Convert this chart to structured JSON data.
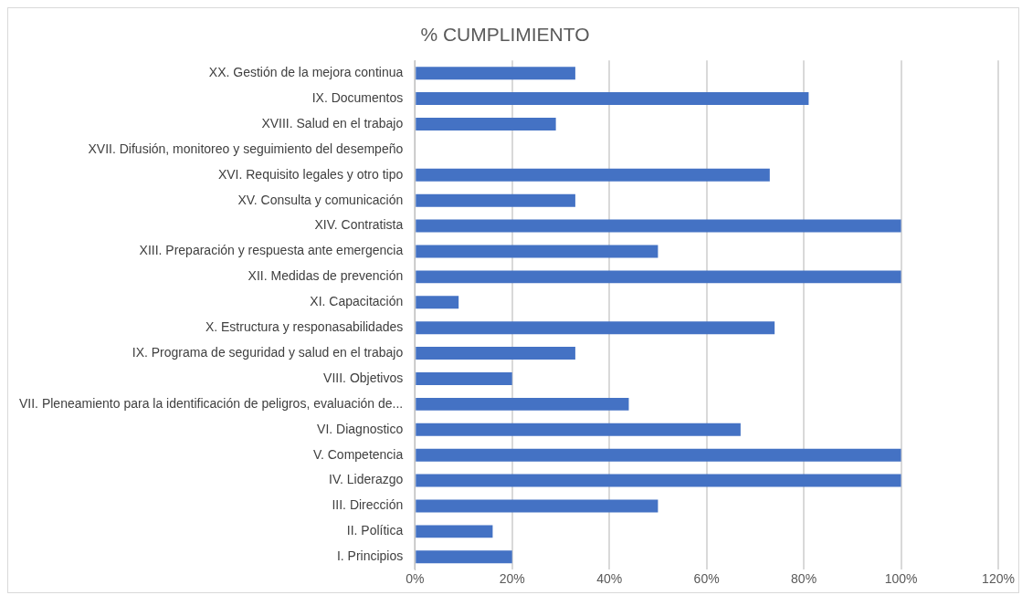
{
  "chart_data": {
    "type": "bar",
    "orientation": "horizontal",
    "title": "% CUMPLIMIENTO",
    "categories": [
      "XX. Gestión de la mejora continua",
      "IX. Documentos",
      "XVIII. Salud en el trabajo",
      "XVII. Difusión, monitoreo y seguimiento del desempeño",
      "XVI. Requisito legales y otro tipo",
      "XV. Consulta y comunicación",
      "XIV. Contratista",
      "XIII. Preparación y respuesta ante emergencia",
      "XII. Medidas de prevención",
      "XI. Capacitación",
      "X. Estructura y responasabilidades",
      "IX. Programa de seguridad y salud en el trabajo",
      "VIII. Objetivos",
      "VII. Pleneamiento para la identificación de peligros, evaluación de...",
      "VI. Diagnostico",
      "V. Competencia",
      "IV. Liderazgo",
      "III. Dirección",
      "II. Política",
      "I. Principios"
    ],
    "values": [
      33,
      81,
      29,
      0,
      73,
      33,
      100,
      50,
      100,
      9,
      74,
      33,
      20,
      44,
      67,
      100,
      100,
      50,
      16,
      20
    ],
    "color": "#4472c4",
    "xlim": [
      0,
      120
    ],
    "xticks": [
      {
        "value": 0,
        "label": "0%"
      },
      {
        "value": 20,
        "label": "20%"
      },
      {
        "value": 40,
        "label": "40%"
      },
      {
        "value": 60,
        "label": "60%"
      },
      {
        "value": 80,
        "label": "80%"
      },
      {
        "value": 100,
        "label": "100%"
      },
      {
        "value": 120,
        "label": "120%"
      }
    ],
    "grid": "x",
    "legend": false
  }
}
